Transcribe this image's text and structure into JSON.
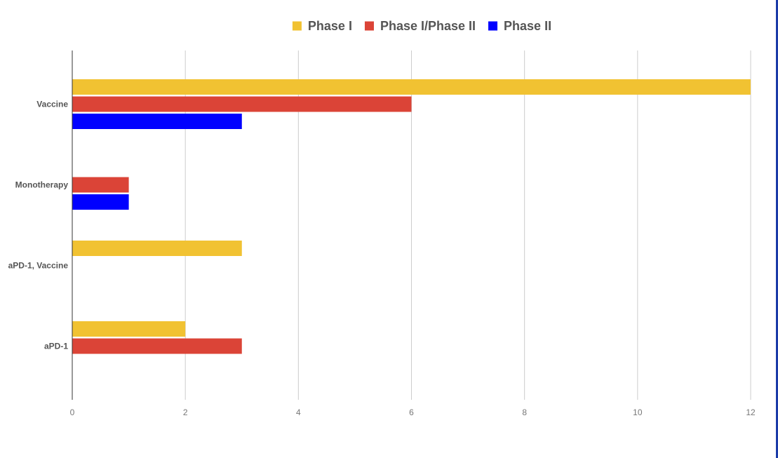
{
  "chart_data": {
    "type": "bar",
    "orientation": "horizontal",
    "categories": [
      "Vaccine",
      "Monotherapy",
      "aPD-1, Vaccine",
      "aPD-1"
    ],
    "series": [
      {
        "name": "Phase I",
        "color": "#f1c232",
        "values": [
          12,
          0,
          3,
          2
        ]
      },
      {
        "name": "Phase I/Phase II",
        "color": "#db4437",
        "values": [
          6,
          1,
          0,
          3
        ]
      },
      {
        "name": "Phase II",
        "color": "#0000ff",
        "values": [
          3,
          1,
          0,
          0
        ]
      }
    ],
    "xlim": [
      0,
      12
    ],
    "xticks": [
      0,
      2,
      4,
      6,
      8,
      10,
      12
    ],
    "grid": true,
    "legend_position": "top-center",
    "title": "",
    "xlabel": "",
    "ylabel": ""
  }
}
